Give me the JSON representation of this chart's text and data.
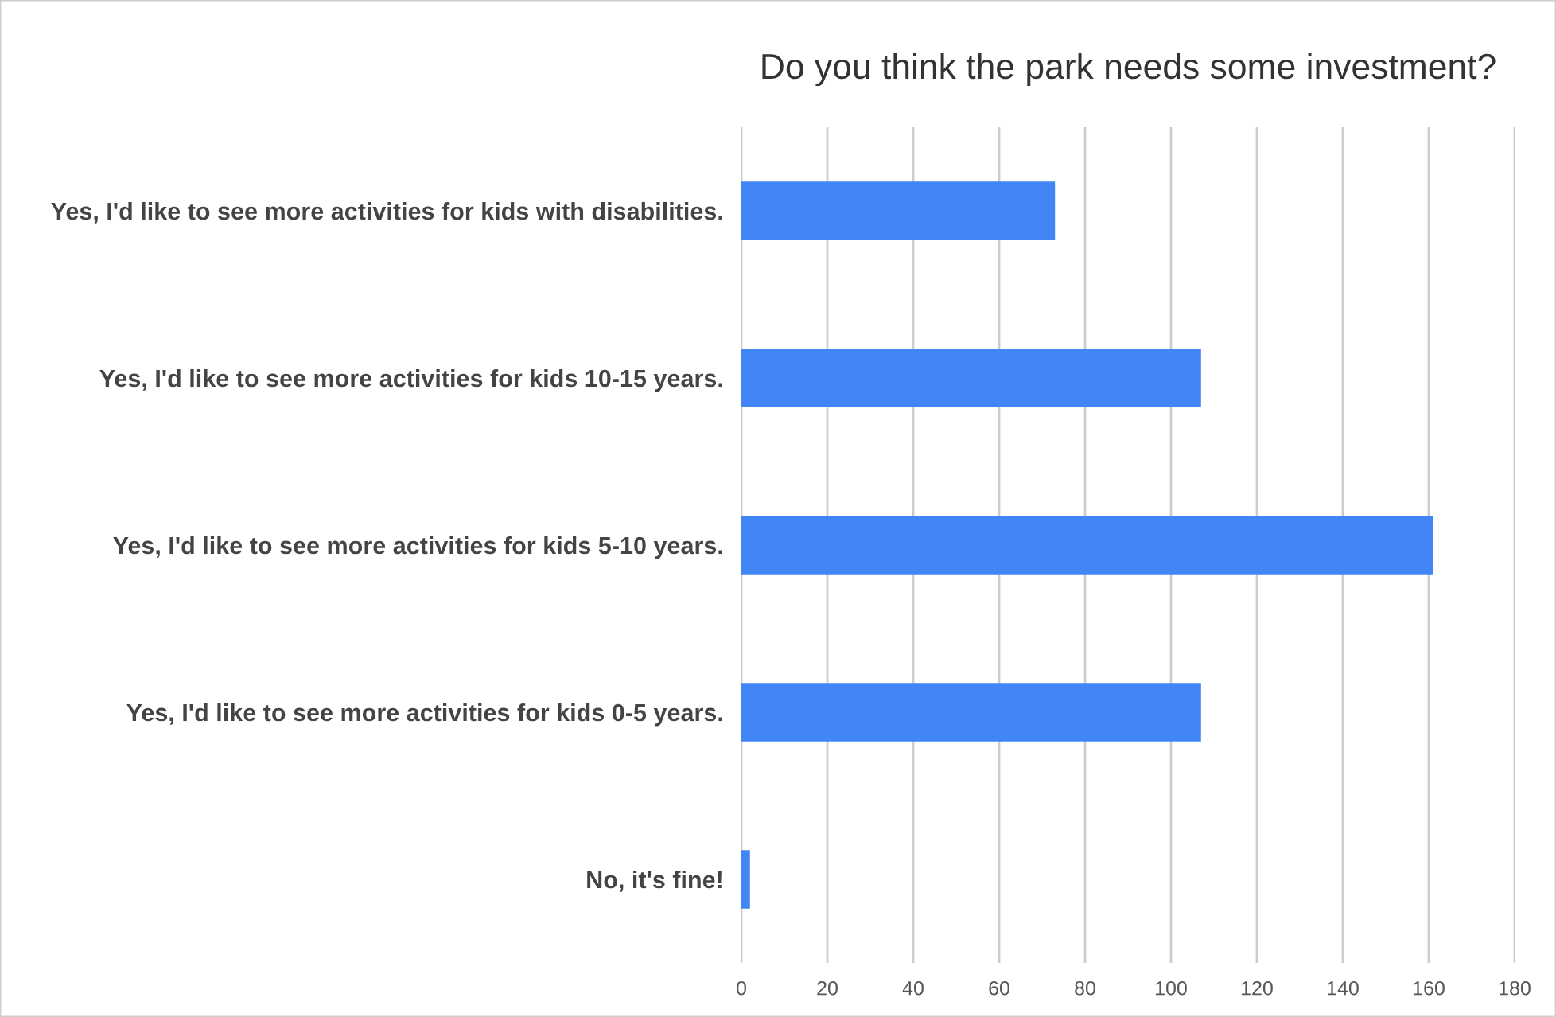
{
  "chart_data": {
    "type": "bar",
    "orientation": "horizontal",
    "title": "Do you think the park needs some investment?",
    "categories": [
      "Yes, I'd like to see more activities for kids with disabilities.",
      "Yes, I'd like to see more activities for kids 10-15 years.",
      "Yes, I'd like to see more activities for kids 5-10 years.",
      "Yes, I'd like to see more activities for kids 0-5 years.",
      "No, it's fine!"
    ],
    "values": [
      73,
      107,
      161,
      107,
      2
    ],
    "color": "#4285f4",
    "xlim": [
      0,
      180
    ],
    "xticks": [
      0,
      20,
      40,
      60,
      80,
      100,
      120,
      140,
      160,
      180
    ],
    "grid": "x",
    "legend": false
  }
}
